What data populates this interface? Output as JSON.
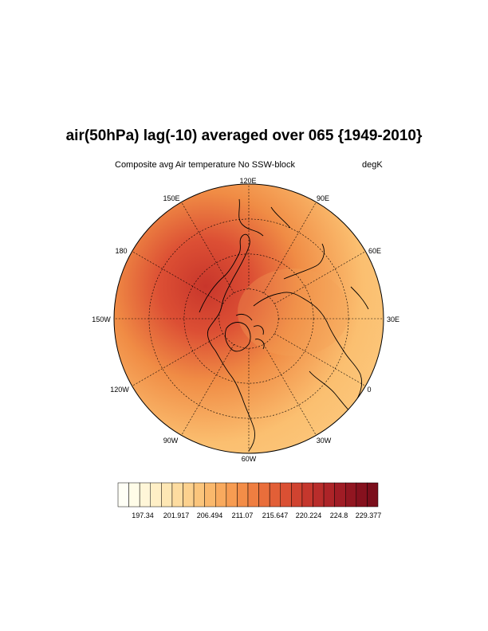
{
  "title": "air(50hPa) lag(-10) averaged over 065 {1949-2010}",
  "subtitle_left": "Composite avg Air temperature No SSW-block",
  "subtitle_right": "degK",
  "projection": "north-polar-stereographic",
  "longitude_labels": [
    "120E",
    "90E",
    "60E",
    "30E",
    "0",
    "30W",
    "60W",
    "90W",
    "120W",
    "150W",
    "180",
    "150E"
  ],
  "colorbar": {
    "labels": [
      "197.34",
      "201.917",
      "206.494",
      "211.07",
      "215.647",
      "220.224",
      "224.8",
      "229.377"
    ],
    "colors": [
      "#fffff6",
      "#fffce8",
      "#fff6d8",
      "#ffefc6",
      "#fee7b4",
      "#fddca0",
      "#fcd18e",
      "#fbc57c",
      "#fab86c",
      "#f9aa5e",
      "#f79c52",
      "#f38d48",
      "#ef7e41",
      "#e96e3b",
      "#e25f37",
      "#da5033",
      "#d04330",
      "#c5372d",
      "#b92d2b",
      "#ad2428",
      "#a01c25",
      "#921621",
      "#86111e",
      "#7b0e1b"
    ]
  },
  "field_colors": {
    "warm_core": "#c8362b",
    "mid": "#f08c45",
    "outer": "#fbbf70",
    "land_outline": "#000000",
    "grid": "#000000"
  }
}
